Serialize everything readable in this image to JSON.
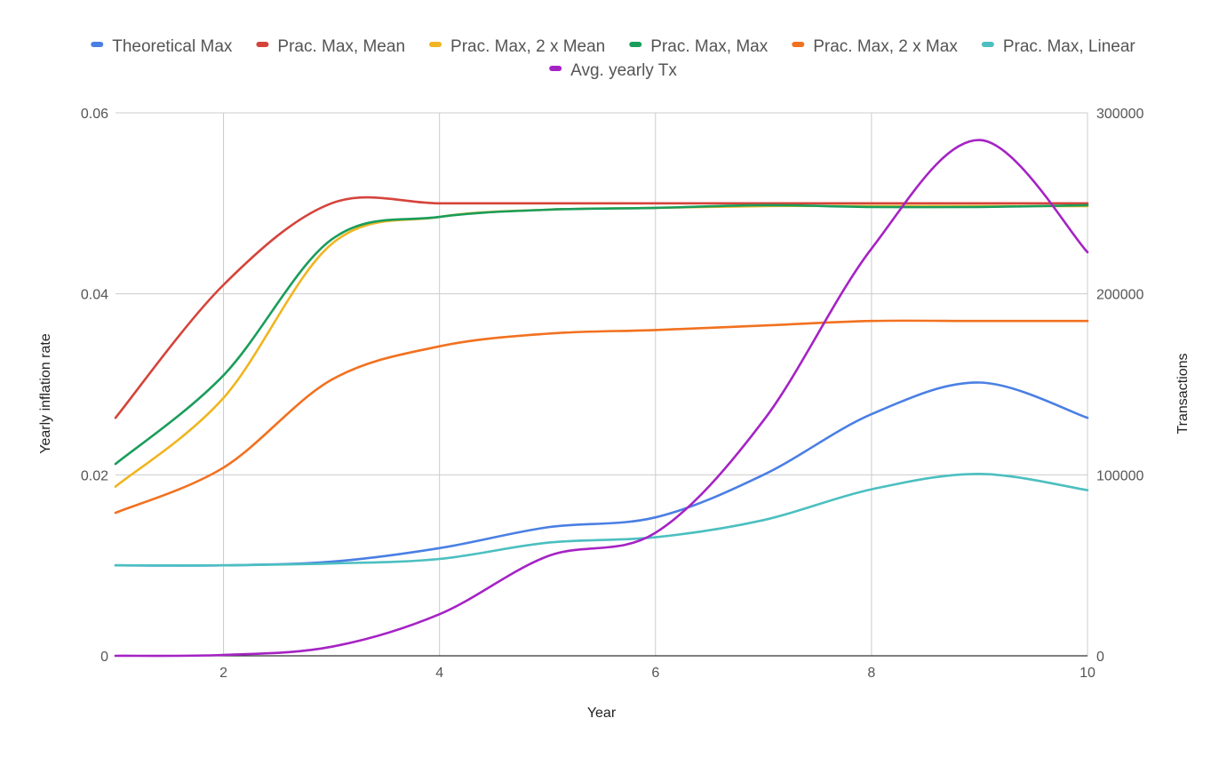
{
  "chart_data": {
    "type": "line",
    "x": [
      1,
      2,
      3,
      4,
      5,
      6,
      7,
      8,
      9,
      10
    ],
    "xlabel": "Year",
    "ylabel_left": "Yearly inflation rate",
    "ylabel_right": "Transactions",
    "xlim": [
      1,
      10
    ],
    "ylim_left": [
      0,
      0.06
    ],
    "ylim_right": [
      0,
      300000
    ],
    "x_ticks": [
      2,
      4,
      6,
      8,
      10
    ],
    "y_ticks_left": [
      0,
      0.02,
      0.04,
      0.06
    ],
    "y_ticks_left_labels": [
      "0",
      "0.02",
      "0.04",
      "0.06"
    ],
    "y_ticks_right": [
      0,
      100000,
      200000,
      300000
    ],
    "y_ticks_right_labels": [
      "0",
      "100000",
      "200000",
      "300000"
    ],
    "grid": true,
    "legend_position": "top",
    "series": [
      {
        "name": "Theoretical Max",
        "color": "#4a7fe4",
        "axis": "left",
        "values": [
          0.01,
          0.01,
          0.0104,
          0.0119,
          0.0142,
          0.0153,
          0.02,
          0.0267,
          0.0302,
          0.0263
        ]
      },
      {
        "name": "Prac. Max, Mean",
        "color": "#d5443b",
        "axis": "left",
        "values": [
          0.0263,
          0.041,
          0.05,
          0.05,
          0.05,
          0.05,
          0.05,
          0.05,
          0.05,
          0.05
        ]
      },
      {
        "name": "Prac. Max, 2 x Mean",
        "color": "#f0b520",
        "axis": "left",
        "values": [
          0.0187,
          0.0285,
          0.0455,
          0.0485,
          0.0493,
          0.0495,
          0.0497,
          0.0497,
          0.0497,
          0.0497
        ]
      },
      {
        "name": "Prac. Max, Max",
        "color": "#1a9d5b",
        "axis": "left",
        "values": [
          0.0212,
          0.031,
          0.046,
          0.0485,
          0.0493,
          0.0495,
          0.0498,
          0.0496,
          0.0496,
          0.0498
        ]
      },
      {
        "name": "Prac. Max, 2 x Max",
        "color": "#f2711f",
        "axis": "left",
        "values": [
          0.0158,
          0.0208,
          0.0305,
          0.0342,
          0.0356,
          0.036,
          0.0365,
          0.037,
          0.037,
          0.037
        ]
      },
      {
        "name": "Prac. Max, Linear",
        "color": "#4cbfc0",
        "axis": "left",
        "values": [
          0.01,
          0.01,
          0.0102,
          0.0107,
          0.0125,
          0.0131,
          0.015,
          0.0184,
          0.0201,
          0.0183
        ]
      },
      {
        "name": "Avg. yearly Tx",
        "color": "#a523c4",
        "axis": "right",
        "values": [
          0,
          500,
          5000,
          23000,
          55000,
          68000,
          130000,
          225000,
          285000,
          223000
        ]
      }
    ]
  }
}
